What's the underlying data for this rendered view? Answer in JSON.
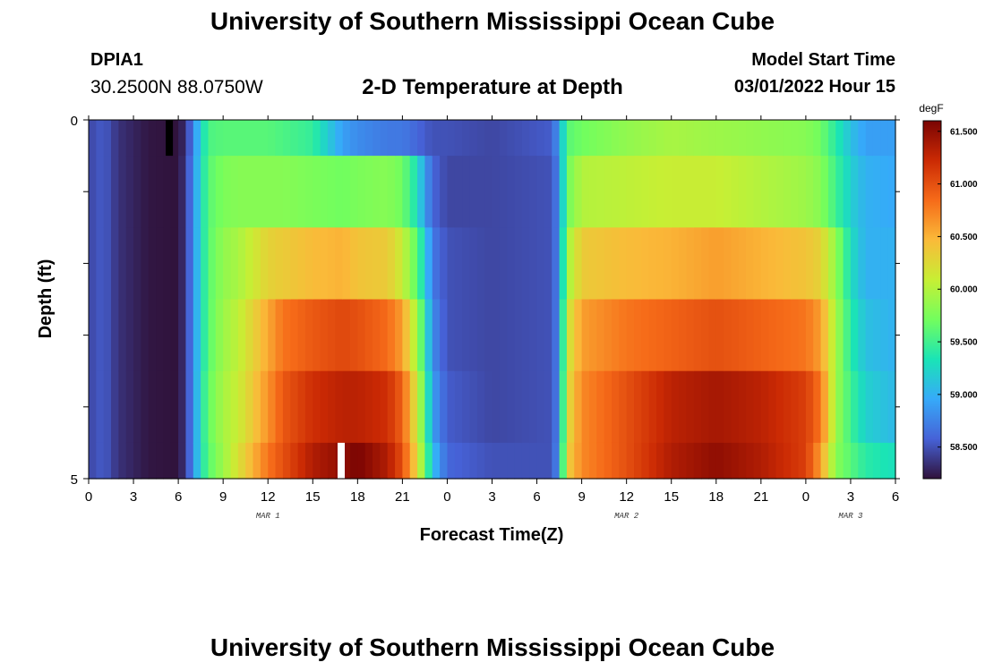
{
  "page": {
    "title": "University of Southern Mississippi Ocean Cube",
    "title_repeat": "University of Southern Mississippi Ocean Cube",
    "station_id": "DPIA1",
    "coordinates": "30.2500N  88.0750W",
    "subtitle": "2-D Temperature at Depth",
    "model_start_label": "Model Start Time",
    "model_start_value": "03/01/2022 Hour 15"
  },
  "chart_data": {
    "type": "heatmap",
    "title": "2-D Temperature at Depth",
    "xlabel": "Forecast Time(Z)",
    "ylabel": "Depth (ft)",
    "x_range_hours": [
      0,
      54
    ],
    "y_range_ft": [
      0,
      5
    ],
    "y_tick_labels": [
      "0",
      "5"
    ],
    "x_tick_labels": [
      "0",
      "3",
      "6",
      "9",
      "12",
      "15",
      "18",
      "21",
      "0",
      "3",
      "6",
      "9",
      "12",
      "15",
      "18",
      "21",
      "0",
      "3",
      "6"
    ],
    "date_labels": [
      {
        "label": "MAR 1",
        "hour": 12
      },
      {
        "label": "MAR 2",
        "hour": 36
      },
      {
        "label": "MAR 3",
        "hour": 51
      }
    ],
    "colorbar": {
      "unit": "degF",
      "min": 58.2,
      "max": 61.6,
      "tick_values": [
        58.5,
        59.0,
        59.5,
        60.0,
        60.5,
        61.0,
        61.5
      ],
      "tick_labels": [
        "58.500",
        "59.000",
        "59.500",
        "60.000",
        "60.500",
        "61.000",
        "61.500"
      ],
      "stops": [
        "#30123b",
        "#4662d7",
        "#36aaf9",
        "#1ae4b6",
        "#72fe5e",
        "#c7ef34",
        "#faba39",
        "#f66b19",
        "#cb2a04",
        "#7a0403"
      ]
    },
    "depth_layers_ft": [
      [
        0,
        0.5
      ],
      [
        0.5,
        1.5
      ],
      [
        1.5,
        2.5
      ],
      [
        2.5,
        3.5
      ],
      [
        3.5,
        4.5
      ],
      [
        4.5,
        5
      ]
    ],
    "keyframes": [
      {
        "hour": 0,
        "temps": [
          58.45,
          58.45,
          58.45,
          58.45,
          58.45,
          58.45
        ]
      },
      {
        "hour": 1,
        "temps": [
          58.55,
          58.55,
          58.55,
          58.55,
          58.55,
          58.55
        ]
      },
      {
        "hour": 2,
        "temps": [
          58.35,
          58.35,
          58.35,
          58.35,
          58.35,
          58.35
        ]
      },
      {
        "hour": 4,
        "temps": [
          58.22,
          58.22,
          58.22,
          58.22,
          58.22,
          58.22
        ]
      },
      {
        "hour": 6,
        "temps": [
          58.2,
          58.2,
          58.2,
          58.2,
          58.2,
          58.2
        ]
      },
      {
        "hour": 6.5,
        "temps": [
          58.35,
          58.4,
          58.4,
          58.4,
          58.4,
          58.4
        ]
      },
      {
        "hour": 7,
        "temps": [
          58.75,
          58.8,
          58.8,
          58.8,
          58.8,
          58.8
        ]
      },
      {
        "hour": 7.5,
        "temps": [
          59.2,
          59.25,
          59.25,
          59.25,
          59.3,
          59.3
        ]
      },
      {
        "hour": 8,
        "temps": [
          59.55,
          59.6,
          59.6,
          59.6,
          59.65,
          59.6
        ]
      },
      {
        "hour": 9,
        "temps": [
          59.6,
          59.75,
          59.85,
          59.9,
          59.95,
          59.9
        ]
      },
      {
        "hour": 10,
        "temps": [
          59.6,
          59.8,
          59.95,
          60.05,
          60.1,
          60.2
        ]
      },
      {
        "hour": 12,
        "temps": [
          59.6,
          59.8,
          60.3,
          60.55,
          60.65,
          60.8
        ]
      },
      {
        "hour": 13,
        "temps": [
          59.55,
          59.8,
          60.35,
          60.8,
          60.95,
          61.0
        ]
      },
      {
        "hour": 15,
        "temps": [
          59.45,
          59.75,
          60.45,
          60.95,
          61.2,
          61.35
        ]
      },
      {
        "hour": 17,
        "temps": [
          58.9,
          59.7,
          60.5,
          61.05,
          61.3,
          61.5
        ]
      },
      {
        "hour": 18,
        "temps": [
          58.8,
          59.75,
          60.4,
          61.0,
          61.3,
          61.6
        ]
      },
      {
        "hour": 20,
        "temps": [
          58.7,
          59.8,
          60.35,
          60.85,
          61.2,
          61.35
        ]
      },
      {
        "hour": 21,
        "temps": [
          58.7,
          59.7,
          60.1,
          60.6,
          60.9,
          61.0
        ]
      },
      {
        "hour": 22,
        "temps": [
          58.6,
          59.3,
          59.6,
          59.9,
          60.1,
          60.25
        ]
      },
      {
        "hour": 22.5,
        "temps": [
          58.55,
          58.9,
          59.2,
          59.4,
          59.6,
          59.7
        ]
      },
      {
        "hour": 23,
        "temps": [
          58.5,
          58.6,
          58.7,
          58.8,
          58.9,
          59.1
        ]
      },
      {
        "hour": 24,
        "temps": [
          58.5,
          58.45,
          58.5,
          58.5,
          58.55,
          58.6
        ]
      },
      {
        "hour": 27,
        "temps": [
          58.45,
          58.45,
          58.45,
          58.45,
          58.45,
          58.5
        ]
      },
      {
        "hour": 31,
        "temps": [
          58.55,
          58.5,
          58.5,
          58.5,
          58.5,
          58.5
        ]
      },
      {
        "hour": 31.5,
        "temps": [
          58.9,
          58.8,
          58.8,
          58.8,
          58.8,
          58.85
        ]
      },
      {
        "hour": 32,
        "temps": [
          59.6,
          59.7,
          59.9,
          60.1,
          60.2,
          60.3
        ]
      },
      {
        "hour": 33,
        "temps": [
          59.7,
          60.0,
          60.35,
          60.6,
          60.7,
          60.7
        ]
      },
      {
        "hour": 36,
        "temps": [
          59.85,
          60.05,
          60.45,
          60.8,
          61.0,
          61.0
        ]
      },
      {
        "hour": 39,
        "temps": [
          59.95,
          60.1,
          60.5,
          60.9,
          61.3,
          61.35
        ]
      },
      {
        "hour": 42,
        "temps": [
          59.9,
          60.1,
          60.6,
          61.0,
          61.4,
          61.5
        ]
      },
      {
        "hour": 45,
        "temps": [
          59.85,
          60.0,
          60.5,
          60.9,
          61.3,
          61.35
        ]
      },
      {
        "hour": 48,
        "temps": [
          59.8,
          59.9,
          60.4,
          60.8,
          61.1,
          61.1
        ]
      },
      {
        "hour": 49,
        "temps": [
          59.7,
          59.8,
          60.3,
          60.6,
          60.8,
          60.6
        ]
      },
      {
        "hour": 50,
        "temps": [
          59.4,
          59.5,
          59.85,
          59.95,
          59.9,
          59.8
        ]
      },
      {
        "hour": 51,
        "temps": [
          59.1,
          59.2,
          59.3,
          59.4,
          59.5,
          59.6
        ]
      },
      {
        "hour": 52,
        "temps": [
          58.9,
          59.0,
          59.0,
          59.1,
          59.2,
          59.4
        ]
      },
      {
        "hour": 54,
        "temps": [
          58.9,
          58.95,
          59.0,
          59.0,
          59.05,
          59.3
        ]
      }
    ],
    "markers": [
      {
        "hour": 5.4,
        "depth_range_ft": [
          0,
          0.5
        ],
        "color": "#000000"
      },
      {
        "hour": 16.9,
        "depth_range_ft": [
          4.5,
          5
        ],
        "color": "#ffffff"
      }
    ]
  }
}
